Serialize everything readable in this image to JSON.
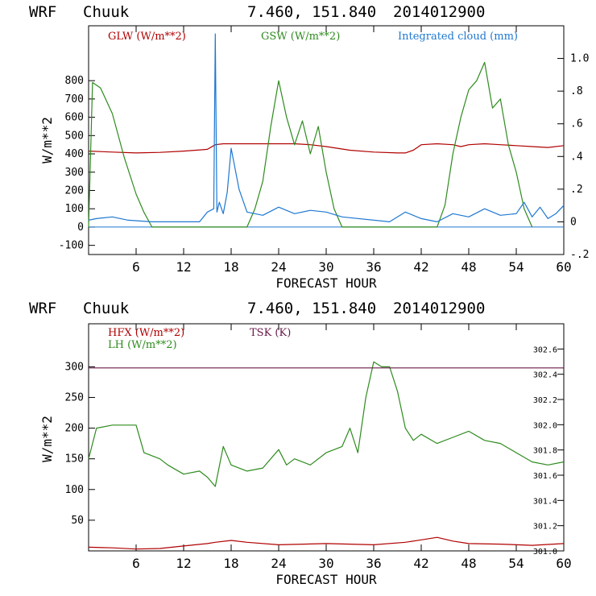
{
  "chart_data": [
    {
      "type": "line",
      "title": {
        "model": "WRF",
        "location": "Chuuk",
        "coords": "7.460, 151.840",
        "date": "2014012900"
      },
      "xlabel": "FORECAST HOUR",
      "ylabel": "W/m**2",
      "xlim": [
        0,
        60
      ],
      "ylim": [
        -150,
        1100
      ],
      "xticks": [
        "6",
        "12",
        "18",
        "24",
        "30",
        "36",
        "42",
        "48",
        "54",
        "60"
      ],
      "yticks": [
        "-100",
        "0",
        "100",
        "200",
        "300",
        "400",
        "500",
        "600",
        "700",
        "800"
      ],
      "y2lim": [
        -0.2,
        1.2
      ],
      "y2ticks": [
        "-.2",
        "0",
        ".2",
        ".4",
        ".6",
        ".8",
        "1.0"
      ],
      "series": [
        {
          "name": "GLW (W/m**2)",
          "color": "#b00000",
          "axis": "left",
          "x": [
            0,
            3,
            6,
            9,
            12,
            15,
            16,
            17,
            18,
            20,
            22,
            24,
            26,
            28,
            30,
            33,
            36,
            39,
            40,
            41,
            42,
            44,
            46,
            47,
            48,
            50,
            52,
            54,
            56,
            58,
            60
          ],
          "y": [
            415,
            410,
            405,
            408,
            415,
            425,
            450,
            455,
            455,
            455,
            455,
            455,
            455,
            450,
            440,
            420,
            410,
            405,
            405,
            420,
            450,
            455,
            450,
            440,
            450,
            455,
            450,
            445,
            440,
            435,
            445
          ]
        },
        {
          "name": "GSW (W/m**2)",
          "color": "#2e8b1e",
          "axis": "left",
          "x": [
            0,
            0.5,
            1.5,
            3,
            4.5,
            6,
            7,
            8,
            20,
            21,
            22,
            23,
            24,
            25,
            26,
            27,
            28,
            29,
            30,
            31,
            32,
            44,
            45,
            46,
            47,
            48,
            49,
            50,
            51,
            52,
            53,
            54,
            55,
            56
          ],
          "y": [
            0,
            790,
            760,
            620,
            380,
            180,
            80,
            0,
            0,
            100,
            250,
            550,
            800,
            600,
            450,
            580,
            400,
            550,
            300,
            100,
            0,
            0,
            120,
            400,
            600,
            750,
            800,
            900,
            650,
            700,
            450,
            300,
            100,
            0
          ]
        },
        {
          "name": "Integrated cloud (mm)",
          "color": "#1f78d0",
          "axis": "right",
          "x": [
            0,
            1,
            3,
            5,
            8,
            12,
            14,
            15,
            15.8,
            16,
            16.2,
            16.5,
            17,
            17.5,
            18,
            19,
            20,
            22,
            24,
            26,
            28,
            30,
            32,
            38,
            40,
            42,
            44,
            46,
            48,
            50,
            52,
            54,
            55,
            56,
            57,
            58,
            59,
            60
          ],
          "y": [
            0.01,
            0.02,
            0.03,
            0.01,
            0.0,
            0.0,
            0.0,
            0.06,
            0.08,
            1.15,
            0.06,
            0.12,
            0.05,
            0.18,
            0.45,
            0.2,
            0.06,
            0.04,
            0.09,
            0.05,
            0.07,
            0.06,
            0.03,
            0.0,
            0.06,
            0.02,
            0.0,
            0.05,
            0.03,
            0.08,
            0.04,
            0.05,
            0.12,
            0.03,
            0.09,
            0.02,
            0.05,
            0.1
          ]
        }
      ]
    },
    {
      "type": "line",
      "title": {
        "model": "WRF",
        "location": "Chuuk",
        "coords": "7.460, 151.840",
        "date": "2014012900"
      },
      "xlabel": "FORECAST HOUR",
      "ylabel": "W/m**2",
      "xlim": [
        0,
        60
      ],
      "ylim": [
        0,
        370
      ],
      "xticks": [
        "6",
        "12",
        "18",
        "24",
        "30",
        "36",
        "42",
        "48",
        "54",
        "60"
      ],
      "yticks": [
        "50",
        "100",
        "150",
        "200",
        "250",
        "300"
      ],
      "y2lim": [
        301.0,
        302.8
      ],
      "y2ticks": [
        "301.0",
        "301.2",
        "301.4",
        "301.6",
        "301.8",
        "302.0",
        "302.2",
        "302.4",
        "302.6"
      ],
      "series": [
        {
          "name": "HFX (W/m**2)",
          "color": "#b00000",
          "axis": "left",
          "x": [
            0,
            3,
            6,
            9,
            12,
            15,
            16,
            18,
            20,
            24,
            30,
            36,
            40,
            42,
            44,
            46,
            48,
            52,
            56,
            60
          ],
          "y": [
            6,
            5,
            3,
            4,
            8,
            12,
            14,
            17,
            14,
            10,
            12,
            10,
            14,
            18,
            22,
            16,
            12,
            11,
            9,
            12
          ]
        },
        {
          "name": "LH (W/m**2)",
          "color": "#2e8b1e",
          "axis": "left",
          "x": [
            0,
            1,
            3,
            6,
            7,
            9,
            10,
            12,
            14,
            15,
            16,
            17,
            18,
            20,
            22,
            24,
            25,
            26,
            28,
            30,
            32,
            33,
            34,
            35,
            36,
            37,
            38,
            39,
            40,
            41,
            42,
            44,
            46,
            48,
            50,
            52,
            54,
            56,
            58,
            60
          ],
          "y": [
            150,
            200,
            205,
            205,
            160,
            150,
            140,
            125,
            130,
            120,
            105,
            170,
            140,
            130,
            135,
            165,
            140,
            150,
            140,
            160,
            170,
            200,
            160,
            250,
            308,
            300,
            300,
            260,
            200,
            180,
            190,
            175,
            185,
            195,
            180,
            175,
            160,
            145,
            140,
            145
          ]
        },
        {
          "name": "TSK (K)",
          "color": "#6a1a4a",
          "axis": "right",
          "x": [
            0,
            60
          ],
          "y": [
            302.45,
            302.45
          ]
        }
      ]
    }
  ]
}
